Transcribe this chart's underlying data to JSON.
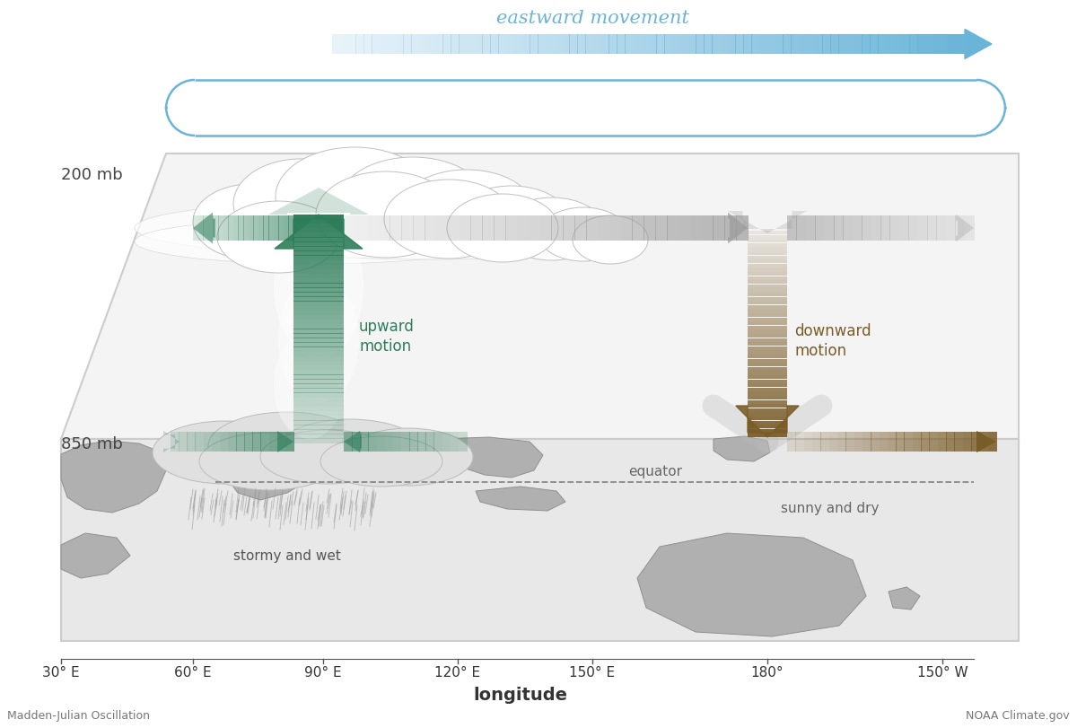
{
  "title": "eastward movement",
  "xlabel": "longitude",
  "footer_left": "Madden-Julian Oscillation",
  "footer_right": "NOAA Climate.gov",
  "label_200mb": "200 mb",
  "label_850mb": "850 mb",
  "label_upward": "upward\nmotion",
  "label_downward": "downward\nmotion",
  "label_stormy": "stormy and wet",
  "label_sunny": "sunny and dry",
  "label_equator": "equator",
  "xtick_labels": [
    "30° E",
    "60° E",
    "90° E",
    "120° E",
    "150° E",
    "180°",
    "150° W"
  ],
  "background": "#ffffff",
  "green_color": "#2e7d5a",
  "brown_color": "#7a5c28",
  "gray_color": "#999999",
  "light_blue": "#6ab4d8",
  "cloud_color": "#e8e8e8",
  "map_land": "#b0b0b0",
  "plane_face": "#f2f2f2",
  "plane_edge": "#cccccc"
}
